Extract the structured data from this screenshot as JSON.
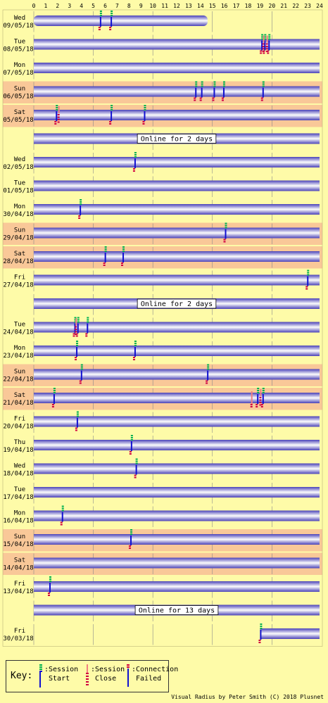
{
  "chart_data": {
    "type": "timeline",
    "x_ticks": [
      "0",
      "1",
      "2",
      "3",
      "4",
      "5",
      "6",
      "7",
      "8",
      "9",
      "10",
      "11",
      "12",
      "13",
      "14",
      "15",
      "16",
      "17",
      "18",
      "19",
      "20",
      "21",
      "22",
      "23",
      "24"
    ],
    "rows": [
      {
        "kind": "day",
        "day": "Wed",
        "date": "09/05/18",
        "weekend": false,
        "online": [
          [
            0,
            14.6
          ]
        ],
        "events": [
          {
            "t": 5.55,
            "type": "start"
          },
          {
            "t": 6.45,
            "type": "start"
          }
        ]
      },
      {
        "kind": "day",
        "day": "Tue",
        "date": "08/05/18",
        "weekend": false,
        "online": [
          [
            0,
            24
          ]
        ],
        "events": [
          {
            "t": 19.1,
            "type": "start"
          },
          {
            "t": 19.35,
            "type": "start"
          },
          {
            "t": 19.7,
            "type": "start"
          },
          {
            "t": 19.25,
            "type": "close"
          },
          {
            "t": 19.55,
            "type": "close"
          }
        ]
      },
      {
        "kind": "day",
        "day": "Mon",
        "date": "07/05/18",
        "weekend": false,
        "online": [
          [
            0,
            24
          ]
        ],
        "events": []
      },
      {
        "kind": "day",
        "day": "Sun",
        "date": "06/05/18",
        "weekend": true,
        "online": [
          [
            0,
            24
          ]
        ],
        "events": [
          {
            "t": 13.55,
            "type": "start"
          },
          {
            "t": 14.05,
            "type": "start"
          },
          {
            "t": 15.1,
            "type": "start"
          },
          {
            "t": 15.9,
            "type": "start"
          },
          {
            "t": 19.2,
            "type": "start"
          }
        ]
      },
      {
        "kind": "day",
        "day": "Sat",
        "date": "05/05/18",
        "weekend": true,
        "online": [
          [
            0,
            24
          ]
        ],
        "events": [
          {
            "t": 1.85,
            "type": "start"
          },
          {
            "t": 2.05,
            "type": "close"
          },
          {
            "t": 6.45,
            "type": "start"
          },
          {
            "t": 9.25,
            "type": "start"
          }
        ]
      },
      {
        "kind": "gap",
        "label": "Online for 2 days"
      },
      {
        "kind": "day",
        "day": "Wed",
        "date": "02/05/18",
        "weekend": false,
        "online": [
          [
            0,
            24
          ]
        ],
        "events": [
          {
            "t": 8.45,
            "type": "start"
          }
        ]
      },
      {
        "kind": "day",
        "day": "Tue",
        "date": "01/05/18",
        "weekend": false,
        "online": [
          [
            0,
            24
          ]
        ],
        "events": []
      },
      {
        "kind": "day",
        "day": "Mon",
        "date": "30/04/18",
        "weekend": false,
        "online": [
          [
            0,
            24
          ]
        ],
        "events": [
          {
            "t": 3.85,
            "type": "start"
          }
        ]
      },
      {
        "kind": "day",
        "day": "Sun",
        "date": "29/04/18",
        "weekend": true,
        "online": [
          [
            0,
            24
          ]
        ],
        "events": [
          {
            "t": 16.05,
            "type": "start"
          }
        ]
      },
      {
        "kind": "day",
        "day": "Sat",
        "date": "28/04/18",
        "weekend": true,
        "online": [
          [
            0,
            24
          ]
        ],
        "events": [
          {
            "t": 5.95,
            "type": "start"
          },
          {
            "t": 7.45,
            "type": "start"
          }
        ]
      },
      {
        "kind": "day",
        "day": "Fri",
        "date": "27/04/18",
        "weekend": false,
        "online": [
          [
            0,
            24
          ]
        ],
        "events": [
          {
            "t": 22.95,
            "type": "start"
          }
        ]
      },
      {
        "kind": "gap",
        "label": "Online for 2 days"
      },
      {
        "kind": "day",
        "day": "Tue",
        "date": "24/04/18",
        "weekend": false,
        "online": [
          [
            0,
            24
          ]
        ],
        "events": [
          {
            "t": 3.4,
            "type": "start"
          },
          {
            "t": 3.65,
            "type": "start"
          },
          {
            "t": 4.45,
            "type": "start"
          },
          {
            "t": 3.5,
            "type": "close"
          }
        ]
      },
      {
        "kind": "day",
        "day": "Mon",
        "date": "23/04/18",
        "weekend": false,
        "online": [
          [
            0,
            24
          ]
        ],
        "events": [
          {
            "t": 3.55,
            "type": "start"
          },
          {
            "t": 8.45,
            "type": "start"
          }
        ]
      },
      {
        "kind": "day",
        "day": "Sun",
        "date": "22/04/18",
        "weekend": true,
        "online": [
          [
            0,
            24
          ]
        ],
        "events": [
          {
            "t": 3.95,
            "type": "start"
          },
          {
            "t": 14.55,
            "type": "start"
          }
        ]
      },
      {
        "kind": "day",
        "day": "Sat",
        "date": "21/04/18",
        "weekend": true,
        "online": [
          [
            0,
            24
          ]
        ],
        "events": [
          {
            "t": 1.65,
            "type": "start"
          },
          {
            "t": 18.25,
            "type": "failed"
          },
          {
            "t": 18.75,
            "type": "start"
          },
          {
            "t": 19.2,
            "type": "start"
          },
          {
            "t": 19.0,
            "type": "close"
          }
        ]
      },
      {
        "kind": "day",
        "day": "Fri",
        "date": "20/04/18",
        "weekend": false,
        "online": [
          [
            0,
            24
          ]
        ],
        "events": [
          {
            "t": 3.6,
            "type": "start"
          }
        ]
      },
      {
        "kind": "day",
        "day": "Thu",
        "date": "19/04/18",
        "weekend": false,
        "online": [
          [
            0,
            24
          ]
        ],
        "events": [
          {
            "t": 8.15,
            "type": "start"
          }
        ]
      },
      {
        "kind": "day",
        "day": "Wed",
        "date": "18/04/18",
        "weekend": false,
        "online": [
          [
            0,
            24
          ]
        ],
        "events": [
          {
            "t": 8.55,
            "type": "start"
          }
        ]
      },
      {
        "kind": "day",
        "day": "Tue",
        "date": "17/04/18",
        "weekend": false,
        "online": [
          [
            0,
            24
          ]
        ],
        "events": []
      },
      {
        "kind": "day",
        "day": "Mon",
        "date": "16/04/18",
        "weekend": false,
        "online": [
          [
            0,
            24
          ]
        ],
        "events": [
          {
            "t": 2.35,
            "type": "start"
          }
        ]
      },
      {
        "kind": "day",
        "day": "Sun",
        "date": "15/04/18",
        "weekend": true,
        "online": [
          [
            0,
            24
          ]
        ],
        "events": [
          {
            "t": 8.1,
            "type": "start"
          }
        ]
      },
      {
        "kind": "day",
        "day": "Sat",
        "date": "14/04/18",
        "weekend": true,
        "online": [
          [
            0,
            24
          ]
        ],
        "events": []
      },
      {
        "kind": "day",
        "day": "Fri",
        "date": "13/04/18",
        "weekend": false,
        "online": [
          [
            0,
            24
          ]
        ],
        "events": [
          {
            "t": 1.3,
            "type": "start"
          }
        ]
      },
      {
        "kind": "gap",
        "label": "Online for 13 days"
      },
      {
        "kind": "day",
        "day": "Fri",
        "date": "30/03/18",
        "weekend": false,
        "online": [
          [
            19.0,
            24
          ]
        ],
        "events": [
          {
            "t": 19.0,
            "type": "start"
          }
        ]
      }
    ]
  },
  "key": {
    "title": "Key:",
    "session_start": ":Session\n Start",
    "session_close": ":Session\n Close",
    "connection_failed": ":Connection\n Failed"
  },
  "credit": "Visual Radius by Peter Smith (C) 2018 Plusnet",
  "colors": {
    "background": "#fefba8",
    "weekend": "#f9c898",
    "bar_edge": "#4a42b8",
    "bar_mid": "#fdfdfd",
    "grid": "#8a8a8a",
    "start_green": "#00b050",
    "start_blue": "#1010d0",
    "close_pink": "#f08080",
    "failed_red": "#d00040"
  }
}
